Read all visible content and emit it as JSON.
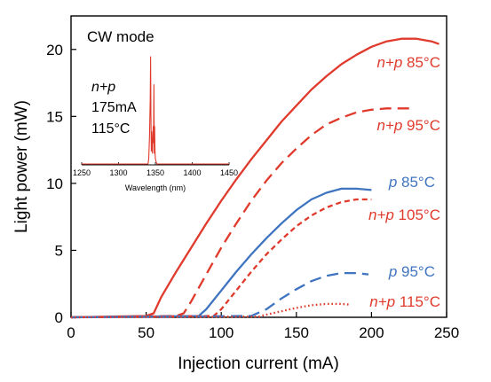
{
  "chart_data": [
    {
      "type": "line",
      "xlabel": "Injection current (mA)",
      "ylabel": "Light power (mW)",
      "xlim": [
        0,
        250
      ],
      "ylim": [
        0,
        22.5
      ],
      "xticks": [
        0,
        50,
        100,
        150,
        200,
        250
      ],
      "yticks": [
        0,
        5,
        10,
        15,
        20
      ],
      "grid": false,
      "annotations": [
        "CW mode"
      ],
      "series": [
        {
          "name": "n+p 85°C",
          "label_prefix": "n+p",
          "label_temp": "85°C",
          "color": "#e03a2c",
          "dash": "solid",
          "x": [
            0,
            50,
            55,
            60,
            70,
            80,
            90,
            100,
            110,
            120,
            130,
            140,
            150,
            160,
            170,
            180,
            190,
            200,
            210,
            220,
            230,
            240,
            245
          ],
          "y": [
            0,
            0.1,
            0.3,
            1.5,
            3.4,
            5.2,
            7.0,
            8.7,
            10.3,
            11.8,
            13.2,
            14.6,
            15.8,
            17.0,
            18.0,
            18.9,
            19.6,
            20.2,
            20.6,
            20.8,
            20.8,
            20.6,
            20.4
          ]
        },
        {
          "name": "n+p 95°C",
          "label_prefix": "n+p",
          "label_temp": "95°C",
          "color": "#e03a2c",
          "dash": "long",
          "x": [
            0,
            70,
            75,
            80,
            90,
            100,
            110,
            120,
            130,
            140,
            150,
            160,
            170,
            180,
            190,
            200,
            210,
            220,
            225
          ],
          "y": [
            0,
            0.1,
            0.3,
            1.2,
            3.2,
            5.2,
            7.0,
            8.7,
            10.2,
            11.5,
            12.6,
            13.6,
            14.4,
            14.9,
            15.3,
            15.5,
            15.6,
            15.6,
            15.6
          ]
        },
        {
          "name": "p 85°C",
          "label_prefix": "p",
          "label_temp": "85°C",
          "color": "#3f74c0",
          "dash": "solid",
          "x": [
            0,
            85,
            90,
            100,
            110,
            120,
            130,
            140,
            150,
            160,
            170,
            180,
            190,
            200
          ],
          "y": [
            0,
            0.1,
            0.6,
            2.0,
            3.4,
            4.7,
            5.9,
            7.0,
            8.0,
            8.8,
            9.3,
            9.6,
            9.6,
            9.5
          ]
        },
        {
          "name": "n+p 105°C",
          "label_prefix": "n+p",
          "label_temp": "105°C",
          "color": "#e03a2c",
          "dash": "short",
          "x": [
            0,
            95,
            100,
            110,
            120,
            130,
            140,
            150,
            160,
            170,
            180,
            190,
            200
          ],
          "y": [
            0,
            0.1,
            0.6,
            2.0,
            3.4,
            4.7,
            5.8,
            6.8,
            7.6,
            8.2,
            8.6,
            8.8,
            8.8
          ]
        },
        {
          "name": "p 95°C",
          "label_prefix": "p",
          "label_temp": "95°C",
          "color": "#3f74c0",
          "dash": "long",
          "x": [
            0,
            120,
            130,
            140,
            150,
            160,
            170,
            180,
            190,
            198
          ],
          "y": [
            0,
            0.1,
            0.6,
            1.4,
            2.1,
            2.7,
            3.1,
            3.3,
            3.3,
            3.2
          ]
        },
        {
          "name": "n+p 115°C",
          "label_prefix": "n+p",
          "label_temp": "115°C",
          "color": "#e03a2c",
          "dash": "dot",
          "x": [
            0,
            125,
            130,
            140,
            150,
            160,
            170,
            180,
            185
          ],
          "y": [
            0,
            0.05,
            0.2,
            0.45,
            0.7,
            0.9,
            1.0,
            1.0,
            0.95
          ]
        }
      ]
    },
    {
      "type": "line",
      "inset": true,
      "label_lines": [
        "n+p",
        "175mA",
        "115°C"
      ],
      "xlabel": "Wavelength (nm)",
      "xlim": [
        1250,
        1450
      ],
      "xticks": [
        1250,
        1300,
        1350,
        1400,
        1450
      ],
      "color": "#e03a2c",
      "series": [
        {
          "x": [
            1250,
            1340,
            1341,
            1342,
            1343,
            1343.5,
            1344,
            1344.5,
            1345,
            1345.5,
            1346,
            1347,
            1347.5,
            1348,
            1348.5,
            1349,
            1349.5,
            1350,
            1351,
            1352,
            1450
          ],
          "y": [
            0,
            0,
            0.05,
            0.25,
            0.6,
            1.0,
            0.4,
            0.12,
            0.3,
            0.15,
            0.1,
            0.35,
            0.2,
            0.74,
            0.1,
            0.35,
            0.12,
            0.05,
            0.02,
            0,
            0
          ]
        }
      ]
    }
  ]
}
